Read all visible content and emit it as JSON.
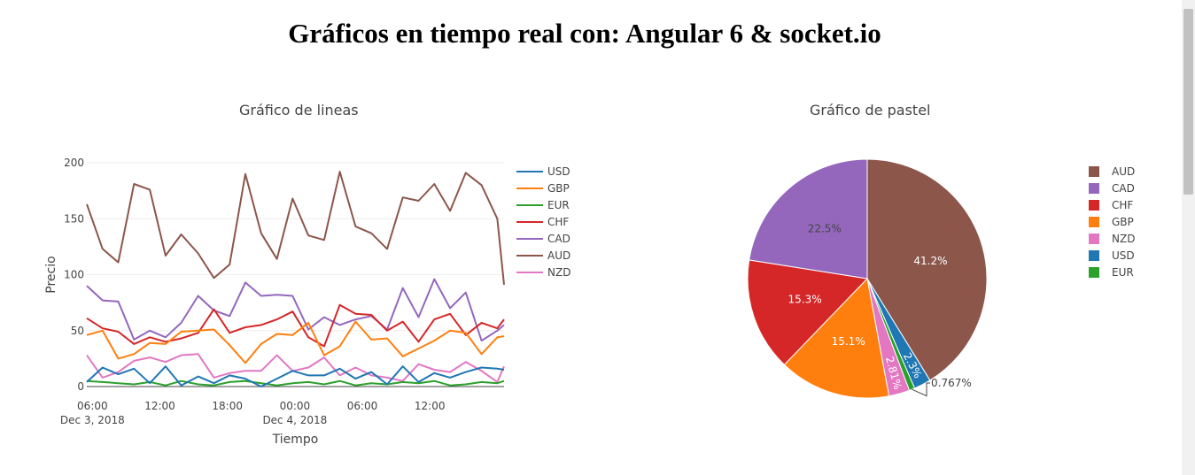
{
  "page": {
    "title": "Gráficos en tiempo real con: Angular 6 & socket.io"
  },
  "colors": {
    "USD": "#1f77b4",
    "GBP": "#ff7f0e",
    "EUR": "#2ca02c",
    "CHF": "#d62728",
    "CAD": "#9467bd",
    "AUD": "#8c564b",
    "NZD": "#e377c2"
  },
  "chart_data": [
    {
      "type": "line",
      "title": "Gráfico de lineas",
      "xlabel": "Tiempo",
      "ylabel": "Precio",
      "ylim": [
        0,
        200
      ],
      "yticks": [
        0,
        50,
        100,
        150,
        200
      ],
      "xrange_hours": [
        5.5,
        42.6
      ],
      "xticks": [
        {
          "hour": 6,
          "label": "06:00",
          "sub": "Dec 3, 2018"
        },
        {
          "hour": 12,
          "label": "12:00",
          "sub": ""
        },
        {
          "hour": 18,
          "label": "18:00",
          "sub": ""
        },
        {
          "hour": 24,
          "label": "00:00",
          "sub": "Dec 4, 2018"
        },
        {
          "hour": 30,
          "label": "06:00",
          "sub": ""
        },
        {
          "hour": 36,
          "label": "12:00",
          "sub": ""
        }
      ],
      "grid": true,
      "legend_position": "right",
      "x": [
        5.5,
        6.9,
        8.3,
        9.7,
        11.1,
        12.5,
        13.9,
        15.4,
        16.8,
        18.2,
        19.6,
        21.0,
        22.4,
        23.8,
        25.2,
        26.6,
        28.0,
        29.4,
        30.8,
        32.2,
        33.6,
        35.0,
        36.4,
        37.8,
        39.2,
        40.6,
        42.0,
        42.6
      ],
      "series": [
        {
          "name": "USD",
          "values": [
            4,
            17,
            11,
            16,
            3,
            18,
            1,
            9,
            3,
            10,
            7,
            0,
            7,
            14,
            10,
            10,
            16,
            7,
            13,
            2,
            18,
            4,
            12,
            8,
            13,
            17,
            16,
            15
          ]
        },
        {
          "name": "GBP",
          "values": [
            46,
            50,
            25,
            29,
            39,
            38,
            49,
            50,
            51,
            37,
            21,
            38,
            47,
            46,
            57,
            28,
            36,
            58,
            42,
            43,
            27,
            34,
            41,
            50,
            48,
            29,
            44,
            45
          ]
        },
        {
          "name": "EUR",
          "values": [
            5,
            4,
            3,
            2,
            4,
            1,
            5,
            2,
            1,
            4,
            5,
            3,
            1,
            3,
            4,
            2,
            5,
            1,
            3,
            2,
            4,
            3,
            5,
            1,
            2,
            4,
            3,
            5
          ]
        },
        {
          "name": "CHF",
          "values": [
            61,
            52,
            49,
            38,
            44,
            40,
            43,
            48,
            69,
            48,
            53,
            55,
            60,
            67,
            44,
            36,
            73,
            65,
            64,
            50,
            58,
            40,
            60,
            65,
            46,
            57,
            52,
            60
          ]
        },
        {
          "name": "CAD",
          "values": [
            90,
            77,
            76,
            42,
            50,
            44,
            57,
            81,
            68,
            63,
            93,
            81,
            82,
            81,
            51,
            62,
            55,
            60,
            63,
            51,
            88,
            62,
            96,
            70,
            84,
            41,
            50,
            55
          ]
        },
        {
          "name": "AUD",
          "values": [
            163,
            123,
            111,
            181,
            176,
            117,
            136,
            119,
            97,
            109,
            190,
            137,
            114,
            168,
            135,
            131,
            192,
            143,
            137,
            123,
            169,
            166,
            181,
            157,
            191,
            180,
            150,
            91
          ]
        },
        {
          "name": "NZD",
          "values": [
            28,
            8,
            13,
            23,
            26,
            22,
            28,
            29,
            8,
            12,
            14,
            14,
            28,
            14,
            17,
            26,
            10,
            17,
            10,
            8,
            5,
            20,
            15,
            13,
            22,
            14,
            4,
            18
          ]
        }
      ]
    },
    {
      "type": "pie",
      "title": "Gráfico de pastel",
      "legend_position": "right",
      "slices": [
        {
          "label": "AUD",
          "value": 41.2,
          "text": "41.2%"
        },
        {
          "label": "CAD",
          "value": 22.5,
          "text": "22.5%"
        },
        {
          "label": "CHF",
          "value": 15.3,
          "text": "15.3%"
        },
        {
          "label": "GBP",
          "value": 15.1,
          "text": "15.1%"
        },
        {
          "label": "NZD",
          "value": 2.81,
          "text": "2.81%"
        },
        {
          "label": "USD",
          "value": 2.3,
          "text": "2.3%"
        },
        {
          "label": "EUR",
          "value": 0.767,
          "text": "0.767%"
        }
      ],
      "rendered_order": [
        "AUD",
        "USD",
        "EUR",
        "NZD",
        "GBP",
        "CHF",
        "CAD"
      ]
    }
  ]
}
